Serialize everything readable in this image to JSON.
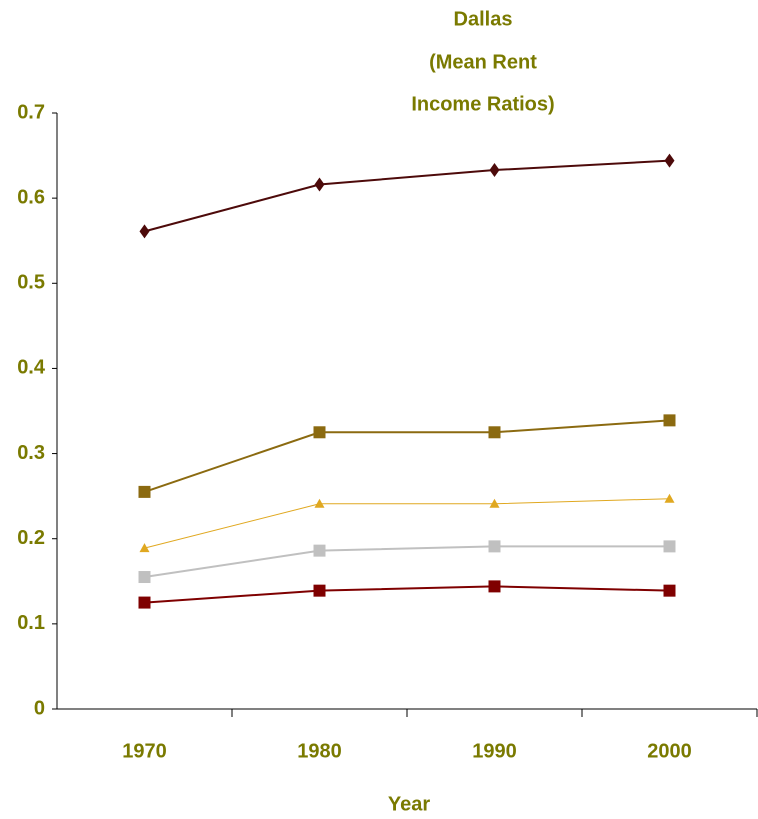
{
  "chart_data": {
    "type": "line",
    "title": [
      "Dallas",
      "(Mean Rent",
      "Income Ratios)"
    ],
    "x_label": "Year",
    "categories": [
      "1970",
      "1980",
      "1990",
      "2000"
    ],
    "series": [
      {
        "color": "#4d0a0a",
        "marker": "diamond",
        "values": [
          0.561,
          0.616,
          0.633,
          0.644
        ]
      },
      {
        "color": "#8b6a10",
        "marker": "square",
        "values": [
          0.255,
          0.325,
          0.325,
          0.339
        ]
      },
      {
        "color": "#e0a820",
        "marker": "triangle",
        "values": [
          0.189,
          0.241,
          0.241,
          0.247
        ]
      },
      {
        "color": "#c0c0c0",
        "marker": "square",
        "values": [
          0.155,
          0.186,
          0.191,
          0.191
        ]
      },
      {
        "color": "#7f0000",
        "marker": "square",
        "values": [
          0.125,
          0.139,
          0.144,
          0.139
        ]
      }
    ],
    "ylim": [
      0,
      0.7
    ],
    "yticks": [
      0,
      0.1,
      0.2,
      0.3,
      0.4,
      0.5,
      0.6,
      0.7
    ],
    "grid": false
  }
}
